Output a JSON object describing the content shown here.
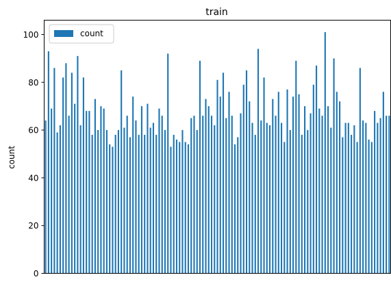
{
  "chart_data": {
    "type": "bar",
    "title": "train",
    "xlabel": "",
    "ylabel": "count",
    "ylim": [
      0,
      106
    ],
    "yticks": [
      0,
      20,
      40,
      60,
      80,
      100
    ],
    "grid": false,
    "legend_position": "top-left",
    "xtick_labels_visible": false,
    "series": [
      {
        "name": "count",
        "color": "#1f77b4",
        "values": [
          64,
          93,
          69,
          86,
          59,
          62,
          82,
          88,
          66,
          84,
          71,
          91,
          62,
          82,
          68,
          68,
          58,
          73,
          60,
          70,
          69,
          60,
          54,
          53,
          58,
          60,
          85,
          61,
          66,
          57,
          74,
          64,
          58,
          70,
          58,
          71,
          61,
          63,
          58,
          69,
          66,
          60,
          92,
          53,
          58,
          56,
          55,
          60,
          55,
          54,
          65,
          66,
          60,
          89,
          66,
          73,
          70,
          66,
          62,
          81,
          74,
          84,
          65,
          76,
          66,
          54,
          57,
          67,
          79,
          85,
          72,
          63,
          58,
          94,
          64,
          82,
          63,
          62,
          73,
          66,
          76,
          63,
          55,
          77,
          60,
          74,
          89,
          75,
          58,
          70,
          60,
          67,
          79,
          87,
          69,
          66,
          101,
          70,
          61,
          90,
          76,
          72,
          57,
          63,
          63,
          58,
          62,
          55,
          86,
          64,
          63,
          56,
          55,
          68,
          63,
          65,
          76,
          66,
          66
        ]
      }
    ]
  }
}
